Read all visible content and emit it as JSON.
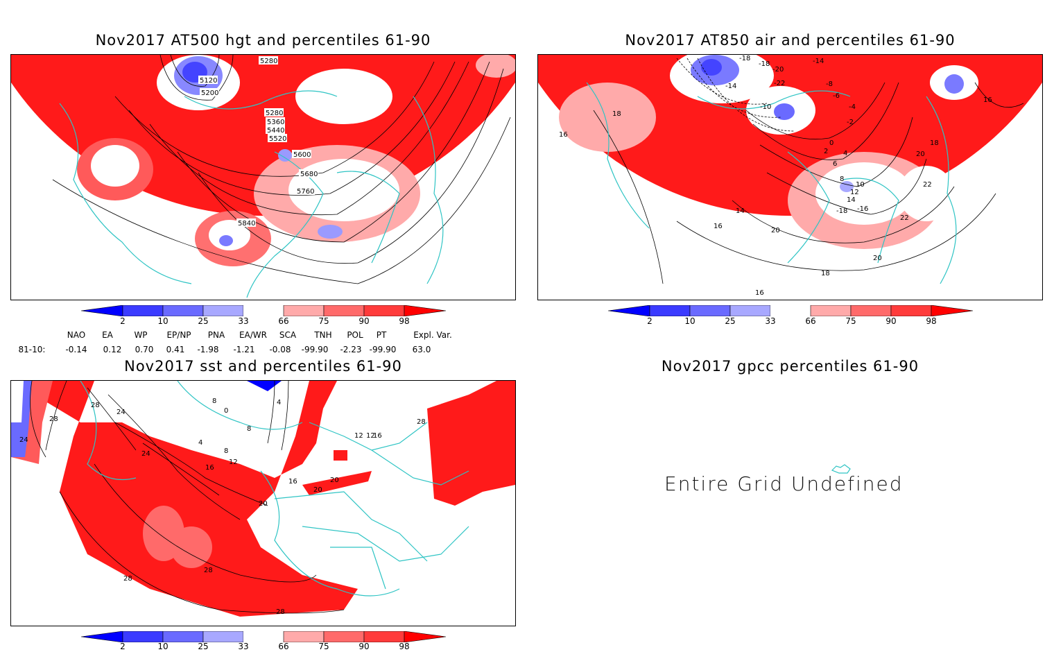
{
  "panels": {
    "hgt": {
      "title": "Nov2017 AT500 hgt and percentiles 61-90",
      "contour_labels": [
        "5280",
        "5120",
        "5200",
        "5280",
        "5360",
        "5440",
        "5520",
        "5600",
        "5680",
        "5760",
        "5840"
      ]
    },
    "air": {
      "title": "Nov2017 AT850 air and percentiles 61-90",
      "contour_labels": [
        "-18",
        "-18",
        "-20",
        "-14",
        "-14",
        "-22",
        "-8",
        "-6",
        "-10",
        "-4",
        "-2",
        "16",
        "16",
        "18",
        "0",
        "2",
        "4",
        "6",
        "8",
        "10",
        "12",
        "14",
        "-18",
        "-16",
        "18",
        "20",
        "22",
        "22",
        "14",
        "16",
        "20",
        "20",
        "18",
        "16"
      ]
    },
    "sst": {
      "title": "Nov2017 sst and percentiles 61-90",
      "contour_labels": [
        "28",
        "24",
        "28",
        "24",
        "8",
        "0",
        "4",
        "8",
        "4",
        "8",
        "12",
        "16",
        "20",
        "24",
        "16",
        "20",
        "20",
        "12",
        "12",
        "16",
        "28",
        "28",
        "28",
        "28"
      ]
    },
    "gpcc": {
      "title": "Nov2017 gpcc percentiles 61-90",
      "message": "Entire Grid Undefined"
    }
  },
  "colorbar": {
    "labels": [
      "2",
      "10",
      "25",
      "33",
      "66",
      "75",
      "90",
      "98"
    ],
    "colors": [
      "#0000ff",
      "#3b3bff",
      "#6a6aff",
      "#a8a8ff",
      "#ffffff",
      "#ffaaaa",
      "#ff6a6a",
      "#ff3b3b",
      "#ff0000"
    ]
  },
  "indices": {
    "row_label": "81-10:",
    "items": [
      {
        "name": "NAO",
        "value": "-0.14"
      },
      {
        "name": "EA",
        "value": "0.12"
      },
      {
        "name": "WP",
        "value": "0.70"
      },
      {
        "name": "EP/NP",
        "value": "0.41"
      },
      {
        "name": "PNA",
        "value": "-1.98"
      },
      {
        "name": "EA/WR",
        "value": "-1.21"
      },
      {
        "name": "SCA",
        "value": "-0.08"
      },
      {
        "name": "TNH",
        "value": "-99.90"
      },
      {
        "name": "POL",
        "value": "-2.23"
      },
      {
        "name": "PT",
        "value": "-99.90"
      },
      {
        "name": "Expl. Var.",
        "value": "63.0"
      }
    ]
  },
  "colors": {
    "land_outline": "#2ec4c4",
    "contour": "#000000"
  }
}
